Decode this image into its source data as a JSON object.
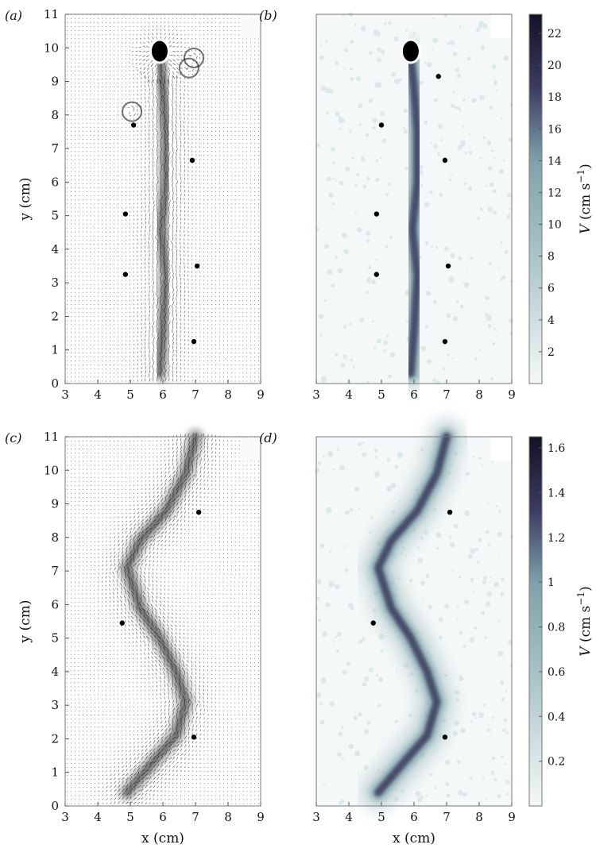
{
  "chart_data": [
    {
      "type": "heatmap",
      "panel_label": "(a)",
      "display": "velocity-vectors",
      "xlabel": "",
      "ylabel": "y (cm)",
      "xlim": [
        3,
        9
      ],
      "ylim": [
        0,
        11
      ],
      "x_ticks": [
        3,
        4,
        5,
        6,
        7,
        8,
        9
      ],
      "y_ticks": [
        0,
        1,
        2,
        3,
        4,
        5,
        6,
        7,
        8,
        9,
        10,
        11
      ],
      "object_center": {
        "x": 5.9,
        "y": 9.9
      },
      "jet_path": [
        {
          "x": 5.9,
          "y": 9.7
        },
        {
          "x": 6.0,
          "y": 8.8
        },
        {
          "x": 6.1,
          "y": 7.5
        },
        {
          "x": 6.1,
          "y": 6.0
        },
        {
          "x": 5.95,
          "y": 4.6
        },
        {
          "x": 6.1,
          "y": 3.2
        },
        {
          "x": 6.0,
          "y": 1.6
        },
        {
          "x": 5.9,
          "y": 0.3
        }
      ],
      "vortices": [
        {
          "x": 5.05,
          "y": 8.1
        },
        {
          "x": 6.8,
          "y": 9.4
        },
        {
          "x": 6.95,
          "y": 9.7
        }
      ],
      "markers": [
        {
          "x": 5.1,
          "y": 7.7
        },
        {
          "x": 6.9,
          "y": 6.65
        },
        {
          "x": 4.85,
          "y": 5.05
        },
        {
          "x": 7.05,
          "y": 3.5
        },
        {
          "x": 4.85,
          "y": 3.25
        },
        {
          "x": 6.95,
          "y": 1.25
        }
      ]
    },
    {
      "type": "heatmap",
      "panel_label": "(b)",
      "display": "speed-magnitude",
      "xlabel": "",
      "ylabel": "",
      "xlim": [
        3,
        9
      ],
      "ylim": [
        0,
        11
      ],
      "x_ticks": [
        3,
        4,
        5,
        6,
        7,
        8,
        9
      ],
      "colorbar": {
        "label": "V (cm s−1)",
        "ticks": [
          2,
          4,
          6,
          8,
          10,
          12,
          14,
          16,
          18,
          20,
          22
        ],
        "range": [
          0,
          23.2
        ]
      },
      "object_center": {
        "x": 5.9,
        "y": 9.9
      },
      "jet_path": [
        {
          "x": 5.9,
          "y": 9.7
        },
        {
          "x": 6.0,
          "y": 8.8
        },
        {
          "x": 6.1,
          "y": 7.5
        },
        {
          "x": 6.1,
          "y": 6.0
        },
        {
          "x": 5.95,
          "y": 4.6
        },
        {
          "x": 6.1,
          "y": 3.2
        },
        {
          "x": 6.0,
          "y": 1.6
        },
        {
          "x": 5.9,
          "y": 0.3
        }
      ],
      "markers": [
        {
          "x": 6.75,
          "y": 9.15
        },
        {
          "x": 5.0,
          "y": 7.7
        },
        {
          "x": 6.95,
          "y": 6.65
        },
        {
          "x": 4.85,
          "y": 5.05
        },
        {
          "x": 7.05,
          "y": 3.5
        },
        {
          "x": 4.85,
          "y": 3.25
        },
        {
          "x": 6.95,
          "y": 1.25
        }
      ]
    },
    {
      "type": "heatmap",
      "panel_label": "(c)",
      "display": "velocity-vectors",
      "xlabel": "x (cm)",
      "ylabel": "y (cm)",
      "xlim": [
        3,
        9
      ],
      "ylim": [
        0,
        11
      ],
      "x_ticks": [
        3,
        4,
        5,
        6,
        7,
        8,
        9
      ],
      "y_ticks": [
        0,
        1,
        2,
        3,
        4,
        5,
        6,
        7,
        8,
        9,
        10,
        11
      ],
      "jet_path": [
        {
          "x": 7.0,
          "y": 11.0
        },
        {
          "x": 6.7,
          "y": 9.9
        },
        {
          "x": 6.1,
          "y": 8.8
        },
        {
          "x": 5.3,
          "y": 7.9
        },
        {
          "x": 4.9,
          "y": 7.1
        },
        {
          "x": 5.3,
          "y": 5.9
        },
        {
          "x": 5.9,
          "y": 5.0
        },
        {
          "x": 6.4,
          "y": 4.0
        },
        {
          "x": 6.7,
          "y": 3.1
        },
        {
          "x": 6.4,
          "y": 2.1
        },
        {
          "x": 5.6,
          "y": 1.2
        },
        {
          "x": 4.9,
          "y": 0.4
        }
      ],
      "markers": [
        {
          "x": 7.1,
          "y": 8.75
        },
        {
          "x": 4.75,
          "y": 5.45
        },
        {
          "x": 6.95,
          "y": 2.05
        }
      ]
    },
    {
      "type": "heatmap",
      "panel_label": "(d)",
      "display": "speed-magnitude",
      "xlabel": "x (cm)",
      "ylabel": "",
      "xlim": [
        3,
        9
      ],
      "ylim": [
        0,
        11
      ],
      "x_ticks": [
        3,
        4,
        5,
        6,
        7,
        8,
        9
      ],
      "colorbar": {
        "label": "V (cm s−1)",
        "ticks": [
          0.2,
          0.4,
          0.6,
          0.8,
          1.0,
          1.2,
          1.4,
          1.6
        ],
        "range": [
          0,
          1.65
        ]
      },
      "jet_path": [
        {
          "x": 7.0,
          "y": 11.0
        },
        {
          "x": 6.7,
          "y": 9.9
        },
        {
          "x": 6.1,
          "y": 8.8
        },
        {
          "x": 5.3,
          "y": 7.9
        },
        {
          "x": 4.9,
          "y": 7.1
        },
        {
          "x": 5.3,
          "y": 5.9
        },
        {
          "x": 5.9,
          "y": 5.0
        },
        {
          "x": 6.4,
          "y": 4.0
        },
        {
          "x": 6.7,
          "y": 3.1
        },
        {
          "x": 6.4,
          "y": 2.1
        },
        {
          "x": 5.6,
          "y": 1.2
        },
        {
          "x": 4.9,
          "y": 0.4
        }
      ],
      "markers": [
        {
          "x": 7.1,
          "y": 8.75
        },
        {
          "x": 4.75,
          "y": 5.45
        },
        {
          "x": 6.95,
          "y": 2.05
        }
      ]
    }
  ],
  "colors": {
    "cmap_low": "#f4f8f8",
    "cmap_mid": "#7fa3ab",
    "cmap_high": "#121225",
    "arrow": "#000000"
  }
}
